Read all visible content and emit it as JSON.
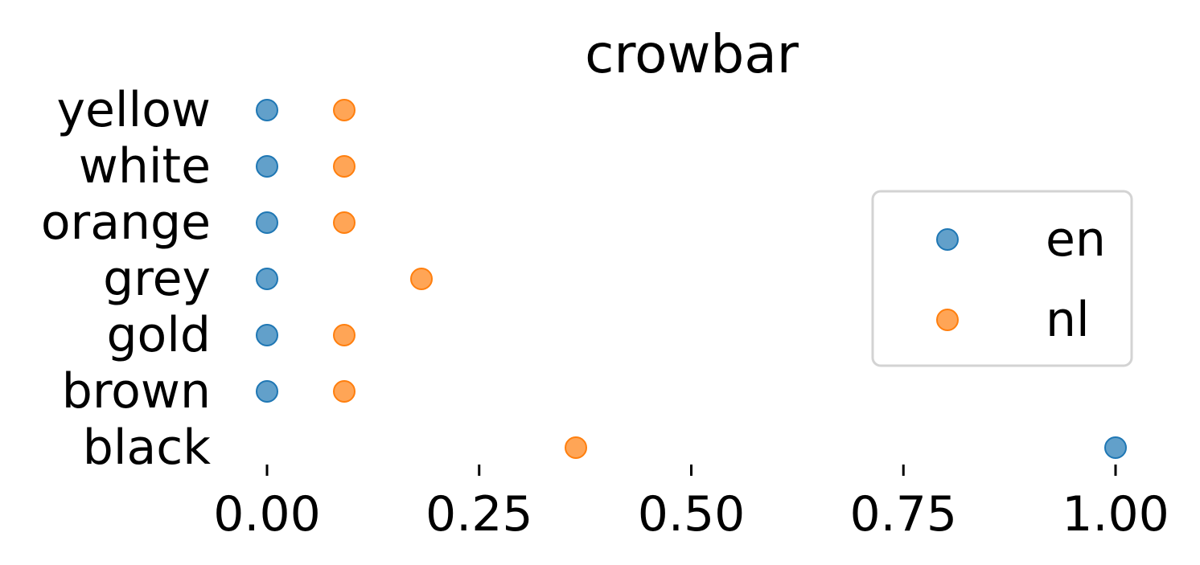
{
  "chart_data": {
    "type": "scatter",
    "title": "crowbar",
    "xlabel": "",
    "ylabel": "",
    "xlim": [
      -0.07,
      1.07
    ],
    "categories": [
      "black",
      "brown",
      "gold",
      "grey",
      "orange",
      "white",
      "yellow"
    ],
    "x_ticks": [
      "0.00",
      "0.25",
      "0.50",
      "0.75",
      "1.00"
    ],
    "x_tick_values": [
      0.0,
      0.25,
      0.5,
      0.75,
      1.0
    ],
    "series": [
      {
        "name": "en",
        "color": "#1f77b4",
        "values": [
          1.0,
          0.0,
          0.0,
          0.0,
          0.0,
          0.0,
          0.0
        ]
      },
      {
        "name": "nl",
        "color": "#ff7f0e",
        "values": [
          0.364,
          0.091,
          0.091,
          0.182,
          0.091,
          0.091,
          0.091
        ]
      }
    ],
    "legend": {
      "position": "right"
    },
    "grid": false
  }
}
